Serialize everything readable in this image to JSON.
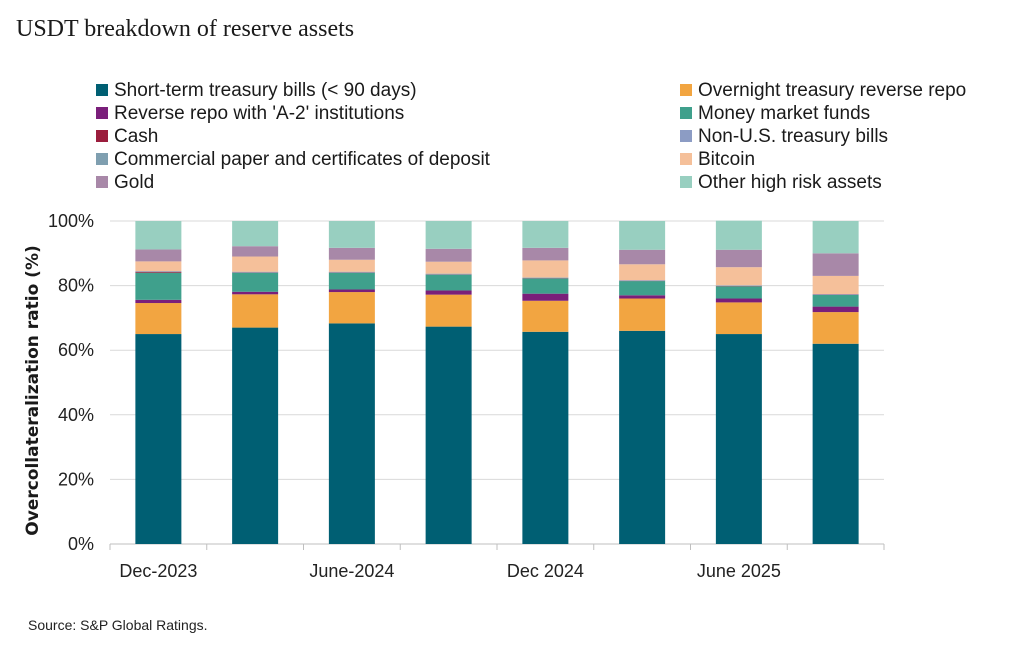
{
  "title": "USDT breakdown of reserve assets",
  "source": "Source: S&P Global Ratings.",
  "chart_data": {
    "type": "bar",
    "stacked": true,
    "ylabel": "Overcollateralization ratio (%)",
    "ylim": [
      0,
      100
    ],
    "yticks": [
      "0%",
      "20%",
      "40%",
      "60%",
      "80%",
      "100%"
    ],
    "x_tick_labels": [
      "Dec-2023",
      "June-2024",
      "Dec 2024",
      "June 2025"
    ],
    "legend_placement": "top",
    "series": [
      {
        "name": "Short-term treasury bills (< 90 days)",
        "color": "#005F73",
        "values": [
          65,
          67,
          68.3,
          67.3,
          65.7,
          66,
          65,
          62
        ]
      },
      {
        "name": "Overnight treasury reverse repo",
        "color": "#F2A541",
        "values": [
          9.6,
          10.3,
          9.7,
          9.9,
          9.6,
          10,
          9.8,
          9.8
        ]
      },
      {
        "name": "Reverse repo with 'A-2' institutions",
        "color": "#7A1F7A",
        "values": [
          1,
          0.8,
          0.8,
          1.3,
          2.2,
          1,
          1.2,
          1.7
        ]
      },
      {
        "name": "Money market funds",
        "color": "#3FA08C",
        "values": [
          8.4,
          5.9,
          5.2,
          4.9,
          4.7,
          4.4,
          3.8,
          3.6
        ]
      },
      {
        "name": "Cash",
        "color": "#9B1D3D",
        "values": [
          0.3,
          0.1,
          0.1,
          0.1,
          0.1,
          0.1,
          0.1,
          0.1
        ]
      },
      {
        "name": "Non-U.S. treasury bills",
        "color": "#8C9CC4",
        "values": [
          0.1,
          0.1,
          0.1,
          0.1,
          0.1,
          0.1,
          0.1,
          0.1
        ]
      },
      {
        "name": "Commercial paper and certificates of deposit",
        "color": "#7F9FB0",
        "values": [
          0.1,
          0.1,
          0.1,
          0.1,
          0.1,
          0.1,
          0.1,
          0.1
        ]
      },
      {
        "name": "Bitcoin",
        "color": "#F5C09A",
        "values": [
          3,
          4.7,
          3.7,
          3.7,
          5.3,
          4.9,
          5.6,
          5.6
        ]
      },
      {
        "name": "Gold",
        "color": "#A888A8",
        "values": [
          3.7,
          3.2,
          3.7,
          4,
          3.9,
          4.5,
          5.4,
          7
        ]
      },
      {
        "name": "Other high risk assets",
        "color": "#98CFC0",
        "values": [
          8.8,
          7.8,
          8.3,
          8.6,
          8.3,
          8.9,
          9,
          10
        ]
      }
    ]
  }
}
